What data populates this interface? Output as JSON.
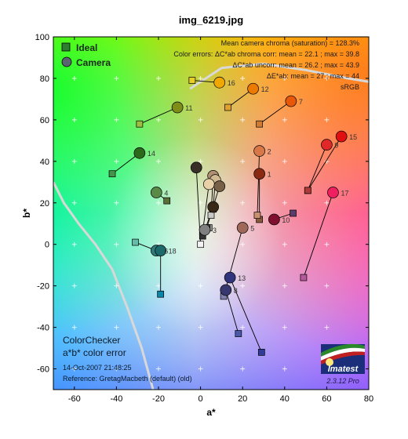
{
  "chart_data": {
    "type": "scatter",
    "title": "img_6219.jpg",
    "xlabel": "a*",
    "ylabel": "b*",
    "xlim": [
      -70,
      80
    ],
    "ylim": [
      -70,
      100
    ],
    "xticks": [
      -60,
      -40,
      -20,
      0,
      20,
      40,
      60,
      80
    ],
    "yticks": [
      -60,
      -40,
      -20,
      0,
      20,
      40,
      60,
      80,
      100
    ],
    "grid": "plus-markers",
    "legend": {
      "placement": "top-left",
      "entries": [
        {
          "label": "Ideal",
          "marker": "square",
          "color": "#2e7d32"
        },
        {
          "label": "Camera",
          "marker": "circle",
          "color": "#5a6470"
        }
      ]
    },
    "stats_lines": [
      "Mean camera chroma (saturation) = 128.3%",
      "Color errors: ΔC*ab chroma corr:  mean = 22.1 ;  max = 39.8",
      "ΔC*ab uncorr:  mean = 26.2 ;  max = 43.9",
      "ΔE*ab:  mean = 27 ;  max = 44",
      "sRGB"
    ],
    "info_lines": [
      "ColorChecker",
      "a*b* color error",
      "14-Oct-2007 21:48:25",
      "Reference: GretagMacbeth (default) (old)"
    ],
    "logo": {
      "text": "Imatest",
      "version": "2.3.12  Pro"
    },
    "patches": [
      {
        "n": "1",
        "ideal": [
          28,
          12
        ],
        "camera": [
          28,
          34
        ],
        "ideal_color": "#8a5a3c",
        "camera_color": "#8a2a12"
      },
      {
        "n": "2",
        "ideal": [
          27,
          14
        ],
        "camera": [
          28,
          45
        ],
        "ideal_color": "#c89070",
        "camera_color": "#d87848"
      },
      {
        "n": "3",
        "ideal": [
          4,
          8
        ],
        "camera": [
          2,
          7
        ],
        "ideal_color": "#909090",
        "camera_color": "#808080"
      },
      {
        "n": "4",
        "ideal": [
          -16,
          21
        ],
        "camera": [
          -21,
          25
        ],
        "ideal_color": "#5a6e3a",
        "camera_color": "#5a8a48"
      },
      {
        "n": "5",
        "ideal": [
          11,
          -25
        ],
        "camera": [
          20,
          8
        ],
        "ideal_color": "#8080b0",
        "camera_color": "#a06858"
      },
      {
        "n": "6",
        "ideal": [
          -31,
          1
        ],
        "camera": [
          -21,
          -3
        ],
        "ideal_color": "#66bba8",
        "camera_color": "#2e7c7c"
      },
      {
        "n": "7",
        "ideal": [
          28,
          58
        ],
        "camera": [
          43,
          69
        ],
        "ideal_color": "#d07c30",
        "camera_color": "#e85808"
      },
      {
        "n": "8",
        "ideal": [
          18,
          -43
        ],
        "camera": [
          12,
          -22
        ],
        "ideal_color": "#4a5aa8",
        "camera_color": "#383870"
      },
      {
        "n": "9",
        "ideal": [
          51,
          26
        ],
        "camera": [
          60,
          48
        ],
        "ideal_color": "#c05a62",
        "camera_color": "#e02828"
      },
      {
        "n": "10",
        "ideal": [
          44,
          15
        ],
        "camera": [
          35,
          12
        ],
        "ideal_color": "#5c3c6c",
        "camera_color": "#801030"
      },
      {
        "n": "11",
        "ideal": [
          -29,
          58
        ],
        "camera": [
          -11,
          66
        ],
        "ideal_color": "#9ebc40",
        "camera_color": "#7e8e18"
      },
      {
        "n": "12",
        "ideal": [
          13,
          66
        ],
        "camera": [
          25,
          75
        ],
        "ideal_color": "#e0a030",
        "camera_color": "#ec7a00"
      },
      {
        "n": "13",
        "ideal": [
          29,
          -52
        ],
        "camera": [
          14,
          -16
        ],
        "ideal_color": "#303c98",
        "camera_color": "#30347c"
      },
      {
        "n": "14",
        "ideal": [
          -42,
          34
        ],
        "camera": [
          -29,
          44
        ],
        "ideal_color": "#46944a",
        "camera_color": "#2a6a1a"
      },
      {
        "n": "15",
        "ideal": [
          51,
          26
        ],
        "camera": [
          67,
          52
        ],
        "ideal_color": "#b03a3a",
        "camera_color": "#e01010"
      },
      {
        "n": "16",
        "ideal": [
          -4,
          79
        ],
        "camera": [
          9,
          78
        ],
        "ideal_color": "#e8cc28",
        "camera_color": "#f0a800"
      },
      {
        "n": "17",
        "ideal": [
          49,
          -16
        ],
        "camera": [
          63,
          25
        ],
        "ideal_color": "#b45a9a",
        "camera_color": "#f02060"
      },
      {
        "n": "18",
        "ideal": [
          -19,
          -24
        ],
        "camera": [
          -19,
          -3
        ],
        "ideal_color": "#0a86a8",
        "camera_color": "#1c6a6a"
      },
      {
        "n": "",
        "ideal": [
          0,
          0
        ],
        "camera": [
          -2,
          37
        ],
        "ideal_color": "#f2f2f2",
        "camera_color": "#383028"
      },
      {
        "n": "",
        "ideal": [
          5,
          14
        ],
        "camera": [
          6,
          33
        ],
        "ideal_color": "#c8c8c8",
        "camera_color": "#b09070"
      },
      {
        "n": "",
        "ideal": [
          6,
          17
        ],
        "camera": [
          7,
          31
        ],
        "ideal_color": "#a0a0a0",
        "camera_color": "#d0b890"
      },
      {
        "n": "",
        "ideal": [
          1,
          6
        ],
        "camera": [
          4,
          29
        ],
        "ideal_color": "#787878",
        "camera_color": "#e8d0a8"
      },
      {
        "n": "",
        "ideal": [
          3,
          8
        ],
        "camera": [
          9,
          28
        ],
        "ideal_color": "#555555",
        "camera_color": "#786048"
      },
      {
        "n": "",
        "ideal": [
          1,
          4
        ],
        "camera": [
          6,
          18
        ],
        "ideal_color": "#343434",
        "camera_color": "#382818"
      }
    ]
  }
}
